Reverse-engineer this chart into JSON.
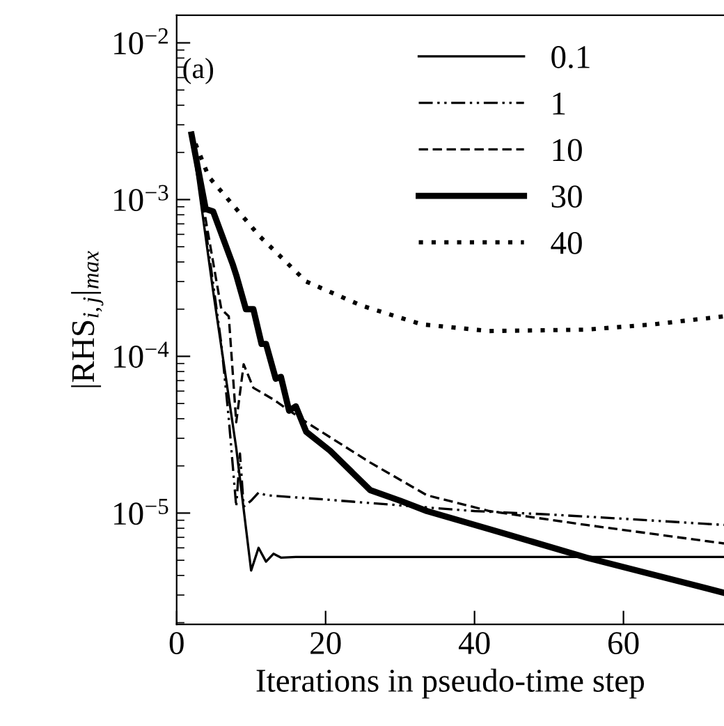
{
  "chart_data": {
    "type": "line",
    "xlabel": "Iterations in pseudo-time step",
    "ylabel": "|RHS$_{i,j}$|$_{max}$",
    "log": "y",
    "grid": false,
    "legend": "top",
    "annotations": [
      "(a)"
    ],
    "xlim": [
      0,
      73.5
    ],
    "xticks": [
      0,
      20,
      40,
      60
    ],
    "ylim": [
      1.95e-06,
      0.015
    ],
    "yticks": [
      {
        "value": 1e-05,
        "label": "10$^{−5}$"
      },
      {
        "value": 0.0001,
        "label": "10$^{−4}$"
      },
      {
        "value": 0.001,
        "label": "10$^{−3}$"
      },
      {
        "value": 0.01,
        "label": "10$^{−2}$"
      }
    ],
    "series": [
      {
        "name": "0.1",
        "color": "#000000",
        "line_style": "solid",
        "x": [
          2,
          4.9,
          8,
          10,
          11,
          12,
          13,
          14,
          16,
          73.5
        ],
        "values": [
          0.0026,
          0.00026,
          2.6e-05,
          4.3e-06,
          6e-06,
          4.9e-06,
          5.5e-06,
          5.2e-06,
          5.25e-06,
          5.25e-06
        ]
      },
      {
        "name": "1",
        "color": "#000000",
        "line_style": "dashdot",
        "x": [
          2,
          4,
          6,
          7,
          8,
          8.5,
          9,
          10,
          11,
          12,
          20,
          30,
          40,
          50,
          60,
          73.5
        ],
        "values": [
          0.0026,
          0.0006,
          0.00012,
          4e-05,
          1.1e-05,
          2.4e-05,
          1.1e-05,
          1.2e-05,
          1.35e-05,
          1.3e-05,
          1.22e-05,
          1.12e-05,
          1.03e-05,
          9.8e-06,
          9.2e-06,
          8.4e-06
        ]
      },
      {
        "name": "10",
        "color": "#000000",
        "line_style": "dashed",
        "x": [
          2,
          4,
          6,
          7,
          8,
          9,
          10.3,
          13,
          17.4,
          26,
          33.6,
          42,
          55,
          73.5
        ],
        "values": [
          0.0026,
          0.0007,
          0.0002,
          0.00018,
          3.8e-05,
          8.9e-05,
          6.3e-05,
          5.3e-05,
          3.8e-05,
          2.1e-05,
          1.3e-05,
          1.03e-05,
          8.4e-06,
          6.4e-06
        ]
      },
      {
        "name": "30",
        "color": "#000000",
        "line_style": "solid",
        "x": [
          2,
          3.9,
          4.9,
          7.5,
          8,
          9.3,
          10.3,
          11.4,
          12,
          13.3,
          14,
          15.1,
          16,
          17.4,
          20.6,
          26,
          30,
          33.6,
          42,
          55,
          73.5
        ],
        "values": [
          0.0026,
          0.00087,
          0.00084,
          0.00039,
          0.00033,
          0.0002,
          0.0002,
          0.00012,
          0.00012,
          7.2e-05,
          7.4e-05,
          4.5e-05,
          4.8e-05,
          3.3e-05,
          2.5e-05,
          1.4e-05,
          1.2e-05,
          1.03e-05,
          7.9e-06,
          5.2e-06,
          3.1e-06
        ]
      },
      {
        "name": "40",
        "color": "#000000",
        "line_style": "dotted",
        "x": [
          1.9,
          4.3,
          11.2,
          17.4,
          24.9,
          32.9,
          42,
          55,
          64,
          73.5
        ],
        "values": [
          0.0027,
          0.0014,
          0.00058,
          0.0003,
          0.00021,
          0.00016,
          0.000145,
          0.000148,
          0.00016,
          0.00018
        ]
      }
    ]
  }
}
